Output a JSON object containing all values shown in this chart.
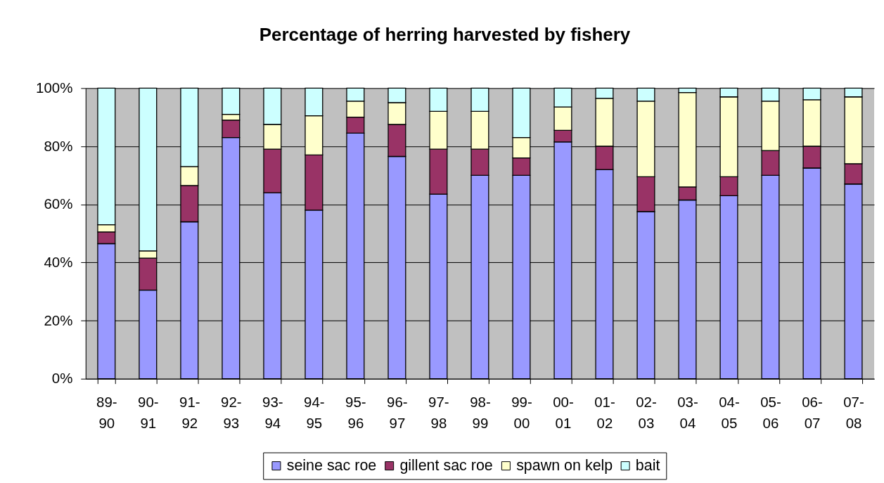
{
  "chart_data": {
    "type": "bar",
    "title": "Percentage of herring harvested by fishery",
    "stacked": true,
    "categories": [
      "89-90",
      "90-91",
      "91-92",
      "92-93",
      "93-94",
      "94-95",
      "95-96",
      "96-97",
      "97-98",
      "98-99",
      "99-00",
      "00-01",
      "01-02",
      "02-03",
      "03-04",
      "04-05",
      "05-06",
      "06-07",
      "07-08"
    ],
    "series": [
      {
        "name": "seine sac roe",
        "color": "#9999ff",
        "values": [
          46.5,
          30.5,
          54,
          83,
          64,
          58,
          84.5,
          76.5,
          63.5,
          70,
          70,
          81.5,
          72,
          57.5,
          61.5,
          63,
          70,
          72.5,
          67
        ]
      },
      {
        "name": "gillent sac roe",
        "color": "#993366",
        "values": [
          4,
          11,
          12.5,
          6,
          15,
          19,
          5.5,
          11,
          15.5,
          9,
          6,
          4,
          8,
          12,
          4.5,
          6.5,
          8.5,
          7.5,
          7
        ]
      },
      {
        "name": "spawn on kelp",
        "color": "#ffffcc",
        "values": [
          2.5,
          2.5,
          6.5,
          2,
          8.5,
          13.5,
          5.5,
          7.5,
          13,
          13,
          7,
          8,
          16.5,
          26,
          32.5,
          27.5,
          17,
          16,
          23
        ]
      },
      {
        "name": "bait",
        "color": "#ccffff",
        "values": [
          47,
          56,
          27,
          9,
          12.5,
          9.5,
          4.5,
          5,
          8,
          8,
          17,
          6.5,
          3.5,
          4.5,
          1.5,
          3,
          4.5,
          4,
          3
        ]
      }
    ],
    "ylim": [
      0,
      100
    ],
    "yticks": [
      {
        "value": 0,
        "label": "0%"
      },
      {
        "value": 20,
        "label": "20%"
      },
      {
        "value": 40,
        "label": "40%"
      },
      {
        "value": 60,
        "label": "60%"
      },
      {
        "value": 80,
        "label": "80%"
      },
      {
        "value": 100,
        "label": "100%"
      }
    ],
    "grid": "y",
    "legend": "bottom"
  }
}
